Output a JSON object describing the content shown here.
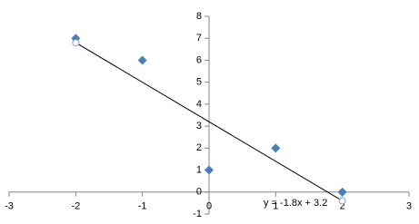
{
  "chart_data": {
    "type": "scatter",
    "x": [
      -2,
      -1,
      0,
      1,
      2
    ],
    "values": [
      7,
      6,
      1,
      2,
      0
    ],
    "color": "#4a7ebb",
    "trendline": {
      "x": [
        -2,
        2
      ],
      "values": [
        6.8,
        -0.4
      ],
      "label": "y = -1.8x + 3.2"
    },
    "xlim": [
      -3,
      3
    ],
    "xticks": [
      -3,
      -2,
      -1,
      0,
      1,
      2,
      3
    ],
    "ylim": [
      -1,
      8
    ],
    "yticks": [
      -1,
      0,
      1,
      2,
      3,
      4,
      5,
      6,
      7,
      8
    ],
    "grid": false
  }
}
